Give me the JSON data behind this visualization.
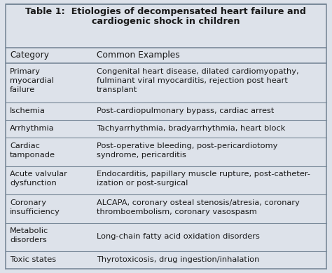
{
  "title_line1": "Table 1:  Etiologies of decompensated heart failure and",
  "title_line2": "cardiogenic shock in children",
  "bg_color": "#dde2ea",
  "col1_header": "Category",
  "col2_header": "Common Examples",
  "rows": [
    {
      "category": "Primary\nmyocardial\nfailure",
      "examples": "Congenital heart disease, dilated cardiomyopathy,\nfulminant viral myocarditis, rejection post heart\ntransplant",
      "nlines": 3
    },
    {
      "category": "Ischemia",
      "examples": "Post-cardiopulmonary bypass, cardiac arrest",
      "nlines": 1
    },
    {
      "category": "Arrhythmia",
      "examples": "Tachyarrhythmia, bradyarrhythmia, heart block",
      "nlines": 1
    },
    {
      "category": "Cardiac\ntamponade",
      "examples": "Post-operative bleeding, post-pericardiotomy\nsyndrome, pericarditis",
      "nlines": 2
    },
    {
      "category": "Acute valvular\ndysfunction",
      "examples": "Endocarditis, papillary muscle rupture, post-catheter-\nization or post-surgical",
      "nlines": 2
    },
    {
      "category": "Coronary\ninsufficiency",
      "examples": "ALCAPA, coronary osteal stenosis/atresia, coronary\nthromboembolism, coronary vasospasm",
      "nlines": 2
    },
    {
      "category": "Metabolic\ndisorders",
      "examples": "Long-chain fatty acid oxidation disorders",
      "nlines": 2
    },
    {
      "category": "Toxic states",
      "examples": "Thyrotoxicosis, drug ingestion/inhalation",
      "nlines": 1
    }
  ],
  "text_color": "#1a1a1a",
  "line_color": "#7a8a9a",
  "title_fontsize": 9.2,
  "header_fontsize": 8.8,
  "body_fontsize": 8.2,
  "col_split": 0.27
}
